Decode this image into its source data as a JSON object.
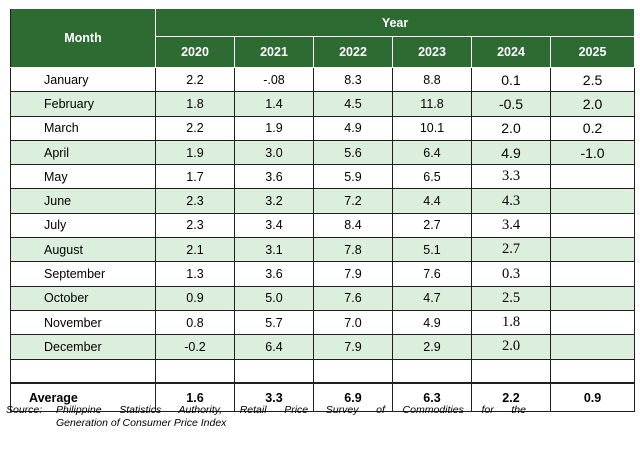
{
  "header": {
    "month_label": "Month",
    "year_label": "Year",
    "years": [
      "2020",
      "2021",
      "2022",
      "2023",
      "2024",
      "2025"
    ]
  },
  "rows": [
    {
      "month": "January",
      "values": [
        "2.2",
        "-.08",
        "8.3",
        "8.8",
        "0.1",
        "2.5"
      ]
    },
    {
      "month": "February",
      "values": [
        "1.8",
        "1.4",
        "4.5",
        "11.8",
        "-0.5",
        "2.0"
      ]
    },
    {
      "month": "March",
      "values": [
        "2.2",
        "1.9",
        "4.9",
        "10.1",
        "2.0",
        "0.2"
      ]
    },
    {
      "month": "April",
      "values": [
        "1.9",
        "3.0",
        "5.6",
        "6.4",
        "4.9",
        "-1.0"
      ]
    },
    {
      "month": "May",
      "values": [
        "1.7",
        "3.6",
        "5.9",
        "6.5",
        "3.3",
        ""
      ]
    },
    {
      "month": "June",
      "values": [
        "2.3",
        "3.2",
        "7.2",
        "4.4",
        "4.3",
        ""
      ]
    },
    {
      "month": "July",
      "values": [
        "2.3",
        "3.4",
        "8.4",
        "2.7",
        "3.4",
        ""
      ]
    },
    {
      "month": "August",
      "values": [
        "2.1",
        "3.1",
        "7.8",
        "5.1",
        "2.7",
        ""
      ]
    },
    {
      "month": "September",
      "values": [
        "1.3",
        "3.6",
        "7.9",
        "7.6",
        "0.3",
        ""
      ]
    },
    {
      "month": "October",
      "values": [
        "0.9",
        "5.0",
        "7.6",
        "4.7",
        "2.5",
        ""
      ]
    },
    {
      "month": "November",
      "values": [
        "0.8",
        "5.7",
        "7.0",
        "4.9",
        "1.8",
        ""
      ]
    },
    {
      "month": "December",
      "values": [
        "-0.2",
        "6.4",
        "7.9",
        "2.9",
        "2.0",
        ""
      ]
    }
  ],
  "average": {
    "label": "Average",
    "values": [
      "1.6",
      "3.3",
      "6.9",
      "6.3",
      "2.2",
      "0.9"
    ]
  },
  "source": {
    "label": "Source:",
    "line1": "Philippine Statistics Authority, Retail Price Survey of Commodities for the",
    "line2": "Generation of Consumer Price Index"
  },
  "colors": {
    "header_bg": "#2e6b33",
    "alt_row_bg": "#dcefdc"
  }
}
